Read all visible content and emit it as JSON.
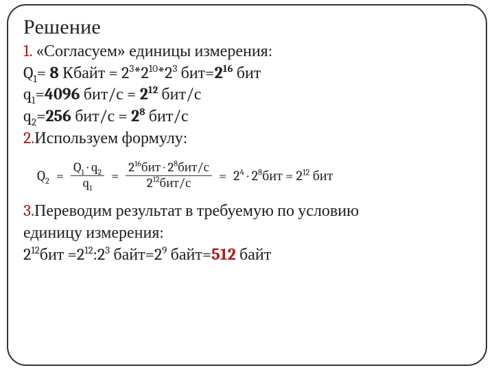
{
  "title": "Решение",
  "step1": {
    "num": "1.",
    "text": " «Согласуем» единицы измерения:"
  },
  "l2": {
    "lhs_sym": "Q",
    "lhs_sub": "1",
    "eq1": "= ",
    "val1": "8",
    "sp1": " Кбайт = 2",
    "e1": "3",
    "star1": "*2",
    "e2": "10",
    "star2": "*2",
    "e3": "3",
    "sp2": " бит=",
    "base4": "2",
    "e4": "16",
    "tail": " бит"
  },
  "l3": {
    "pre": " ",
    "sym": "q",
    "sub": "1",
    "eq": "=",
    "val": "4096",
    "mid": " бит/с = ",
    "base": "2",
    "exp": "12",
    "tail": "  бит/с"
  },
  "l4": {
    "sym": "q",
    "sub": "2",
    "eq": "=",
    "val": "256",
    "mid": " бит/с = ",
    "base": "2",
    "exp": "8",
    "tail": "  бит/с"
  },
  "step2": {
    "num": "2.",
    "text": "Используем формулу:"
  },
  "formula": {
    "lhs_sym": "Q",
    "lhs_sub": "2",
    "n1_a": "Q",
    "n1_as": "1",
    "n1_dot": " · ",
    "n1_b": "q",
    "n1_bs": "2",
    "d1_a": "q",
    "d1_as": "1",
    "n2": "2",
    "n2e": "16",
    "n2u": "бит · 2",
    "n2e2": "8",
    "n2u2": "бит/с",
    "d2": "2",
    "d2e": "12",
    "d2u": "бит/с",
    "rhs1a": "2",
    "rhs1e": "4",
    "rhs1dot": " · 2",
    "rhs1e2": "8",
    "rhs1u": "бит = 2",
    "rhs2e": "12",
    "rhs2u": " бит",
    "eq": "="
  },
  "step3": {
    "num": "3.",
    "text1": "Переводим результат в требуемую по условию",
    "text2": "единицу измерения:"
  },
  "l9": {
    "a": "2",
    "ae": "12",
    "at": "бит =2",
    "be": "12",
    "colon": ":2",
    "ce": "3",
    "mid1": " байт=2",
    "de": "9",
    "mid2": " байт=",
    "res": "512",
    "tail": " байт"
  }
}
